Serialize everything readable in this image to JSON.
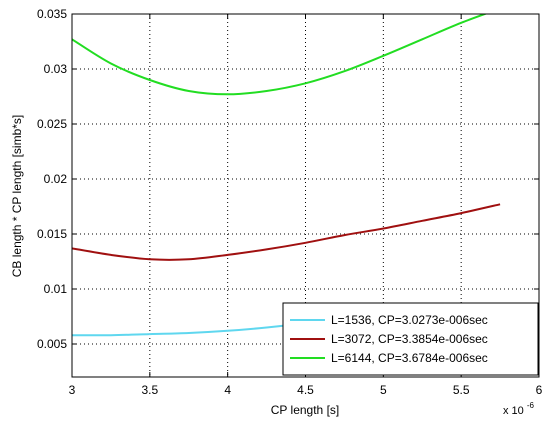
{
  "chart_data": {
    "type": "line",
    "title": "",
    "xlabel": "CP length [s]",
    "ylabel": "CB length * CP length [simb*s]",
    "x_exponent_label": "x 10",
    "x_exponent_power": "-6",
    "xlim": [
      3,
      6
    ],
    "ylim": [
      0.002,
      0.035
    ],
    "xticks": [
      "3",
      "3.5",
      "4",
      "4.5",
      "5",
      "5.5",
      "6"
    ],
    "xtick_values": [
      3,
      3.5,
      4,
      4.5,
      5,
      5.5,
      6
    ],
    "yticks": [
      "0.005",
      "0.01",
      "0.015",
      "0.02",
      "0.025",
      "0.03",
      "0.035"
    ],
    "ytick_values": [
      0.005,
      0.01,
      0.015,
      0.02,
      0.025,
      0.03,
      0.035
    ],
    "grid": true,
    "legend_position": "bottom-right",
    "series": [
      {
        "name": "L=1536, CP=3.0273e-006sec",
        "color": "#5fd7ef",
        "x": [
          3.0,
          3.25,
          3.5,
          3.75,
          4.0,
          4.25,
          4.5,
          4.75,
          5.0
        ],
        "y": [
          0.0058,
          0.0058,
          0.0059,
          0.006,
          0.0062,
          0.0065,
          0.0069,
          0.0074,
          0.008
        ]
      },
      {
        "name": "L=3072, CP=3.3854e-006sec",
        "color": "#a01010",
        "x": [
          3.0,
          3.25,
          3.5,
          3.75,
          4.0,
          4.25,
          4.5,
          4.75,
          5.0,
          5.25,
          5.5,
          5.75
        ],
        "y": [
          0.0137,
          0.0131,
          0.0127,
          0.0127,
          0.0131,
          0.0136,
          0.0142,
          0.0149,
          0.0155,
          0.0162,
          0.0169,
          0.0177
        ]
      },
      {
        "name": "L=6144, CP=3.6784e-006sec",
        "color": "#22dd22",
        "x": [
          3.0,
          3.25,
          3.5,
          3.75,
          4.0,
          4.25,
          4.5,
          4.75,
          5.0,
          5.25,
          5.5,
          5.75
        ],
        "y": [
          0.0327,
          0.0305,
          0.029,
          0.028,
          0.0277,
          0.028,
          0.0287,
          0.0298,
          0.0312,
          0.0327,
          0.0342,
          0.0355
        ]
      }
    ]
  }
}
